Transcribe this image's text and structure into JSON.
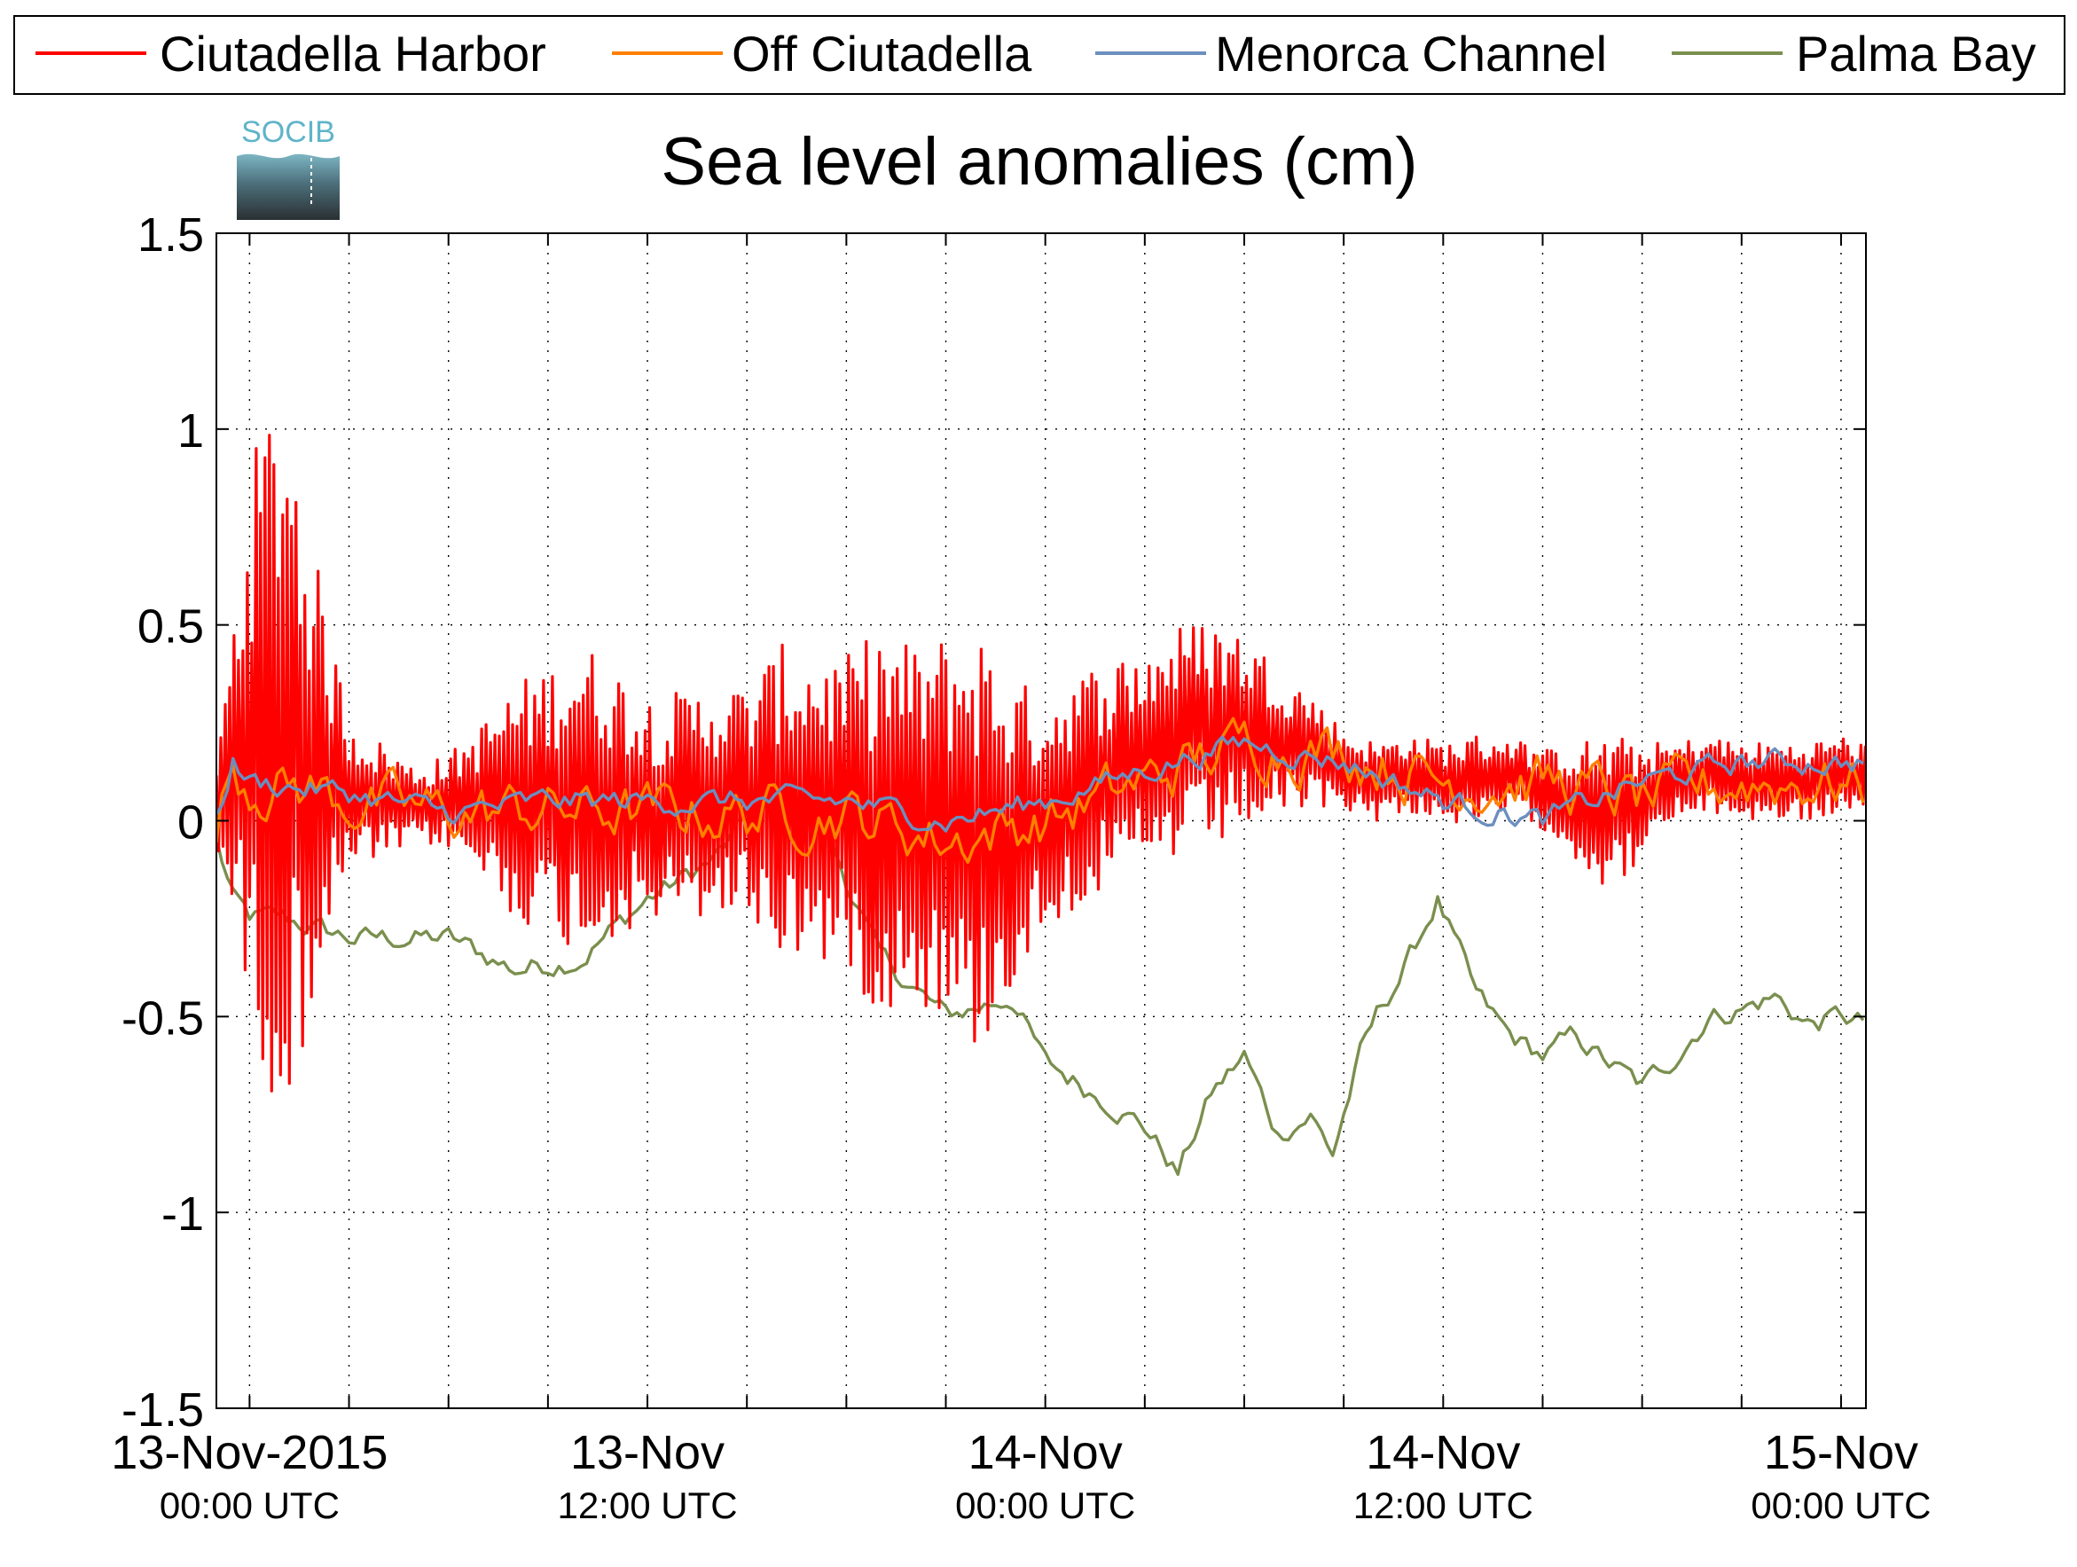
{
  "chart_data": {
    "type": "line",
    "title": "Sea level anomalies (cm)",
    "xlabel": "",
    "ylabel": "",
    "ylim": [
      -1.5,
      1.5
    ],
    "yticks": [
      -1.5,
      -1,
      -0.5,
      0,
      0.5,
      1,
      1.5
    ],
    "ytick_labels": [
      "-1.5",
      "-1",
      "-0.5",
      "0",
      "0.5",
      "1",
      "1.5"
    ],
    "xlim": [
      "2015-11-12T23:00",
      "2015-11-15T00:45"
    ],
    "xgrid": [
      "2015-11-13T00:00",
      "2015-11-13T03:00",
      "2015-11-13T06:00",
      "2015-11-13T09:00",
      "2015-11-13T12:00",
      "2015-11-13T15:00",
      "2015-11-13T18:00",
      "2015-11-13T21:00",
      "2015-11-14T00:00",
      "2015-11-14T03:00",
      "2015-11-14T06:00",
      "2015-11-14T09:00",
      "2015-11-14T12:00",
      "2015-11-14T15:00",
      "2015-11-14T18:00",
      "2015-11-14T21:00",
      "2015-11-15T00:00"
    ],
    "xtick_labels": [
      {
        "time": "2015-11-13T00:00",
        "line1": "13-Nov-2015",
        "line2": "00:00 UTC"
      },
      {
        "time": "2015-11-13T12:00",
        "line1": "13-Nov",
        "line2": "12:00 UTC"
      },
      {
        "time": "2015-11-14T00:00",
        "line1": "14-Nov",
        "line2": "00:00 UTC"
      },
      {
        "time": "2015-11-14T12:00",
        "line1": "14-Nov",
        "line2": "12:00 UTC"
      },
      {
        "time": "2015-11-15T00:00",
        "line1": "15-Nov",
        "line2": "00:00 UTC"
      }
    ],
    "grid": true,
    "legend_position": "top",
    "logo_text": "SOCIB",
    "series": [
      {
        "name": "Ciutadella Harbor",
        "color": "#ff0000",
        "kind": "oscillation",
        "x": [
          "2015-11-12T23:00",
          "2015-11-13T00:00",
          "2015-11-13T01:00",
          "2015-11-13T02:00",
          "2015-11-13T03:00",
          "2015-11-13T04:00",
          "2015-11-13T05:00",
          "2015-11-13T06:00",
          "2015-11-13T07:00",
          "2015-11-13T08:00",
          "2015-11-13T09:00",
          "2015-11-13T10:00",
          "2015-11-13T11:00",
          "2015-11-13T12:00",
          "2015-11-13T13:00",
          "2015-11-13T14:00",
          "2015-11-13T15:00",
          "2015-11-13T16:00",
          "2015-11-13T17:00",
          "2015-11-13T18:00",
          "2015-11-13T19:00",
          "2015-11-13T20:00",
          "2015-11-13T21:00",
          "2015-11-13T22:00",
          "2015-11-13T23:00",
          "2015-11-14T00:00",
          "2015-11-14T01:00",
          "2015-11-14T02:00",
          "2015-11-14T03:00",
          "2015-11-14T04:00",
          "2015-11-14T05:00",
          "2015-11-14T06:00",
          "2015-11-14T07:00",
          "2015-11-14T08:00",
          "2015-11-14T09:00",
          "2015-11-14T10:00",
          "2015-11-14T11:00",
          "2015-11-14T12:00",
          "2015-11-14T13:00",
          "2015-11-14T14:00",
          "2015-11-14T15:00",
          "2015-11-14T16:00",
          "2015-11-14T17:00",
          "2015-11-14T18:00",
          "2015-11-14T19:00",
          "2015-11-14T20:00",
          "2015-11-14T21:00",
          "2015-11-14T22:00",
          "2015-11-14T23:00",
          "2015-11-15T00:00",
          "2015-11-15T00:45"
        ],
        "mean": [
          0.05,
          0.2,
          0.2,
          0.12,
          0.07,
          0.05,
          0.04,
          0.05,
          0.05,
          0.05,
          0.05,
          0.06,
          0.05,
          0.03,
          0.03,
          0.05,
          0.05,
          0.05,
          0.04,
          0.02,
          0.0,
          0.0,
          -0.02,
          -0.05,
          -0.03,
          0.02,
          0.08,
          0.12,
          0.15,
          0.2,
          0.22,
          0.23,
          0.2,
          0.18,
          0.13,
          0.1,
          0.12,
          0.1,
          0.1,
          0.12,
          0.08,
          0.05,
          0.02,
          0.05,
          0.1,
          0.12,
          0.1,
          0.1,
          0.1,
          0.12,
          0.1
        ],
        "amplitude": [
          0.1,
          0.7,
          1.0,
          0.55,
          0.2,
          0.15,
          0.1,
          0.12,
          0.2,
          0.3,
          0.35,
          0.4,
          0.35,
          0.3,
          0.3,
          0.3,
          0.3,
          0.4,
          0.4,
          0.4,
          0.5,
          0.45,
          0.5,
          0.55,
          0.4,
          0.3,
          0.3,
          0.3,
          0.3,
          0.3,
          0.3,
          0.25,
          0.2,
          0.15,
          0.1,
          0.1,
          0.1,
          0.1,
          0.12,
          0.1,
          0.1,
          0.15,
          0.2,
          0.15,
          0.1,
          0.1,
          0.1,
          0.1,
          0.1,
          0.1,
          0.1
        ]
      },
      {
        "name": "Off Ciutadella",
        "color": "#ff8000",
        "kind": "smooth",
        "x": [
          "2015-11-12T23:00",
          "2015-11-12T23:30",
          "2015-11-13T00:00",
          "2015-11-13T02:00",
          "2015-11-13T03:00",
          "2015-11-13T06:00",
          "2015-11-13T09:00",
          "2015-11-13T12:00",
          "2015-11-13T15:00",
          "2015-11-13T18:00",
          "2015-11-13T21:00",
          "2015-11-14T00:00",
          "2015-11-14T03:00",
          "2015-11-14T06:00",
          "2015-11-14T09:00",
          "2015-11-14T12:00",
          "2015-11-14T15:00",
          "2015-11-14T18:00",
          "2015-11-14T21:00",
          "2015-11-15T00:00",
          "2015-11-15T00:45"
        ],
        "y": [
          0.0,
          0.15,
          0.1,
          0.08,
          0.05,
          0.02,
          0.03,
          0.02,
          0.02,
          0.02,
          -0.05,
          0.0,
          0.1,
          0.2,
          0.18,
          0.1,
          0.1,
          0.05,
          0.1,
          0.1,
          0.08
        ],
        "jitter": 0.06
      },
      {
        "name": "Menorca Channel",
        "color": "#6b8fbf",
        "kind": "smooth",
        "x": [
          "2015-11-12T23:00",
          "2015-11-12T23:30",
          "2015-11-13T00:00",
          "2015-11-13T03:00",
          "2015-11-13T06:00",
          "2015-11-13T09:00",
          "2015-11-13T12:00",
          "2015-11-13T15:00",
          "2015-11-13T18:00",
          "2015-11-13T21:00",
          "2015-11-14T00:00",
          "2015-11-14T03:00",
          "2015-11-14T06:00",
          "2015-11-14T09:00",
          "2015-11-14T12:00",
          "2015-11-14T15:00",
          "2015-11-14T18:00",
          "2015-11-14T21:00",
          "2015-11-15T00:00",
          "2015-11-15T00:45"
        ],
        "y": [
          0.0,
          0.15,
          0.1,
          0.07,
          0.02,
          0.05,
          0.05,
          0.05,
          0.05,
          0.0,
          0.05,
          0.13,
          0.2,
          0.15,
          0.05,
          0.0,
          0.1,
          0.15,
          0.15,
          0.15
        ],
        "jitter": 0.025
      },
      {
        "name": "Palma Bay",
        "color": "#7a8f4e",
        "kind": "smooth",
        "x": [
          "2015-11-12T23:00",
          "2015-11-12T23:30",
          "2015-11-13T00:00",
          "2015-11-13T01:00",
          "2015-11-13T03:00",
          "2015-11-13T06:00",
          "2015-11-13T08:00",
          "2015-11-13T10:00",
          "2015-11-13T12:00",
          "2015-11-13T14:00",
          "2015-11-13T15:00",
          "2015-11-13T17:00",
          "2015-11-13T19:00",
          "2015-11-13T21:00",
          "2015-11-13T23:00",
          "2015-11-14T00:00",
          "2015-11-14T02:00",
          "2015-11-14T03:00",
          "2015-11-14T04:00",
          "2015-11-14T05:00",
          "2015-11-14T06:00",
          "2015-11-14T07:00",
          "2015-11-14T08:00",
          "2015-11-14T08:40",
          "2015-11-14T09:30",
          "2015-11-14T10:00",
          "2015-11-14T11:00",
          "2015-11-14T11:50",
          "2015-11-14T13:00",
          "2015-11-14T14:00",
          "2015-11-14T15:00",
          "2015-11-14T16:00",
          "2015-11-14T17:00",
          "2015-11-14T18:00",
          "2015-11-14T19:00",
          "2015-11-14T20:00",
          "2015-11-14T21:00",
          "2015-11-14T22:00",
          "2015-11-14T23:00",
          "2015-11-15T00:00",
          "2015-11-15T00:45"
        ],
        "y": [
          -0.05,
          -0.2,
          -0.25,
          -0.25,
          -0.3,
          -0.3,
          -0.38,
          -0.35,
          -0.2,
          -0.1,
          0.0,
          0.05,
          -0.35,
          -0.5,
          -0.45,
          -0.62,
          -0.72,
          -0.78,
          -0.9,
          -0.7,
          -0.6,
          -0.8,
          -0.75,
          -0.85,
          -0.6,
          -0.5,
          -0.35,
          -0.2,
          -0.45,
          -0.55,
          -0.6,
          -0.55,
          -0.62,
          -0.68,
          -0.6,
          -0.5,
          -0.48,
          -0.45,
          -0.52,
          -0.5,
          -0.52
        ],
        "jitter": 0.025
      }
    ]
  }
}
